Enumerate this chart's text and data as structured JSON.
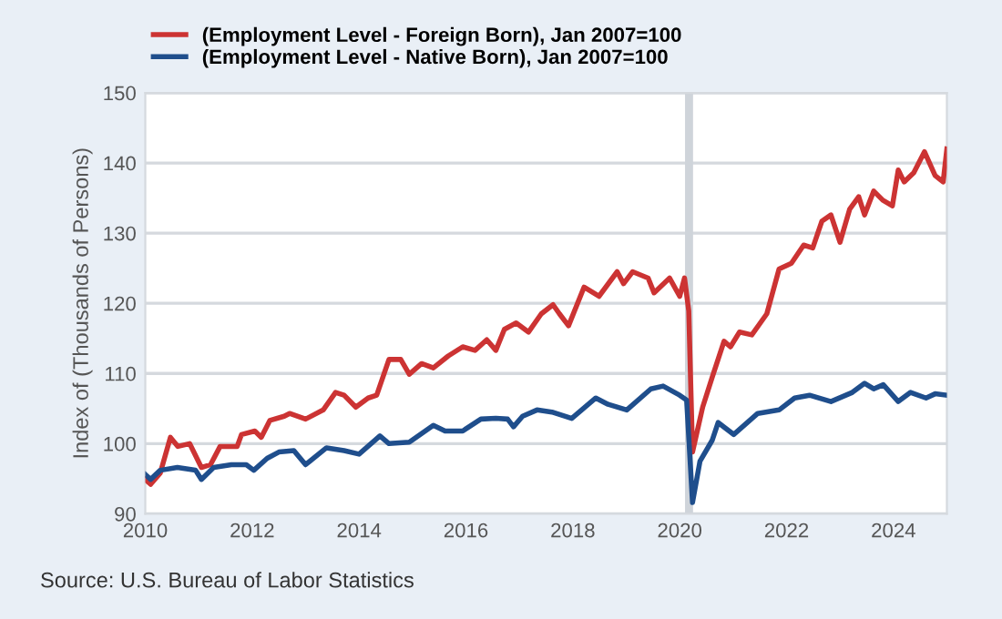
{
  "chart_data": {
    "type": "line",
    "ylabel": "Index of (Thousands of Persons)",
    "xlim": [
      2010,
      2025
    ],
    "ylim": [
      90,
      150
    ],
    "xticks": [
      2010,
      2012,
      2014,
      2016,
      2018,
      2020,
      2022,
      2024
    ],
    "yticks": [
      90,
      100,
      110,
      120,
      130,
      140,
      150
    ],
    "grid": "y",
    "legend": "top left",
    "bands": [
      {
        "axis": "x",
        "from": 2020.1,
        "to": 2020.25,
        "color": "#cfd4da"
      }
    ],
    "annotations": [
      "Source: U.S. Bureau of Labor Statistics"
    ],
    "series": [
      {
        "name": "(Employment Level - Foreign Born), Jan 2007=100",
        "color": "#cc3333",
        "x": [
          2010.0,
          2010.1,
          2010.28,
          2010.47,
          2010.61,
          2010.83,
          2011.05,
          2011.22,
          2011.4,
          2011.72,
          2011.8,
          2012.05,
          2012.17,
          2012.33,
          2012.6,
          2012.7,
          2013.0,
          2013.33,
          2013.56,
          2013.72,
          2013.94,
          2014.17,
          2014.33,
          2014.56,
          2014.78,
          2014.94,
          2015.17,
          2015.39,
          2015.67,
          2015.94,
          2016.17,
          2016.39,
          2016.56,
          2016.72,
          2016.94,
          2017.17,
          2017.41,
          2017.63,
          2017.75,
          2017.92,
          2018.21,
          2018.49,
          2018.83,
          2018.95,
          2019.12,
          2019.41,
          2019.52,
          2019.81,
          2020.0,
          2020.09,
          2020.17,
          2020.24,
          2020.43,
          2020.61,
          2020.83,
          2020.95,
          2021.12,
          2021.35,
          2021.63,
          2021.86,
          2022.09,
          2022.32,
          2022.49,
          2022.66,
          2022.83,
          2023.0,
          2023.18,
          2023.35,
          2023.46,
          2023.63,
          2023.8,
          2023.98,
          2024.09,
          2024.2,
          2024.38,
          2024.58,
          2024.78,
          2024.93,
          2025.0
        ],
        "values": [
          94.9,
          94.2,
          95.8,
          100.9,
          99.6,
          100.0,
          96.6,
          97.0,
          99.6,
          99.6,
          101.3,
          101.8,
          100.9,
          103.3,
          103.9,
          104.3,
          103.5,
          104.8,
          107.3,
          106.9,
          105.2,
          106.5,
          106.9,
          112.0,
          112.0,
          109.9,
          111.4,
          110.8,
          112.5,
          113.8,
          113.3,
          114.8,
          113.3,
          116.3,
          117.2,
          115.9,
          118.5,
          119.8,
          118.5,
          116.8,
          122.3,
          121.0,
          124.5,
          122.8,
          124.5,
          123.6,
          121.5,
          123.6,
          121.0,
          123.6,
          118.9,
          98.8,
          105.2,
          109.5,
          114.6,
          113.8,
          115.9,
          115.5,
          118.5,
          124.9,
          125.7,
          128.3,
          127.9,
          131.7,
          132.6,
          128.7,
          133.4,
          135.2,
          132.6,
          136.0,
          134.7,
          133.9,
          139.0,
          137.3,
          138.6,
          141.6,
          138.2,
          137.3,
          142.0
        ]
      },
      {
        "name": "(Employment Level - Native Born), Jan 2007=100",
        "color": "#1f4e8c",
        "x": [
          2010.0,
          2010.1,
          2010.28,
          2010.6,
          2010.94,
          2011.05,
          2011.28,
          2011.61,
          2011.89,
          2012.03,
          2012.28,
          2012.5,
          2012.78,
          2013.0,
          2013.39,
          2013.72,
          2014.0,
          2014.39,
          2014.56,
          2014.94,
          2015.39,
          2015.61,
          2015.94,
          2016.28,
          2016.56,
          2016.78,
          2016.89,
          2017.06,
          2017.33,
          2017.61,
          2017.98,
          2018.43,
          2018.66,
          2019.01,
          2019.46,
          2019.69,
          2020.0,
          2020.13,
          2020.24,
          2020.38,
          2020.61,
          2020.72,
          2021.01,
          2021.46,
          2021.86,
          2022.15,
          2022.43,
          2022.83,
          2023.23,
          2023.46,
          2023.63,
          2023.81,
          2024.09,
          2024.32,
          2024.61,
          2024.78,
          2025.0
        ],
        "values": [
          95.6,
          94.9,
          96.2,
          96.6,
          96.2,
          94.9,
          96.6,
          97.0,
          97.0,
          96.2,
          97.9,
          98.8,
          99.0,
          97.0,
          99.4,
          99.0,
          98.5,
          101.1,
          100.0,
          100.2,
          102.6,
          101.8,
          101.8,
          103.5,
          103.6,
          103.5,
          102.4,
          103.9,
          104.8,
          104.5,
          103.6,
          106.5,
          105.6,
          104.8,
          107.8,
          108.2,
          106.9,
          106.2,
          91.6,
          97.5,
          100.5,
          103.0,
          101.3,
          104.3,
          104.8,
          106.5,
          106.9,
          106.0,
          107.3,
          108.6,
          107.8,
          108.4,
          106.0,
          107.3,
          106.5,
          107.1,
          106.9
        ]
      }
    ]
  }
}
